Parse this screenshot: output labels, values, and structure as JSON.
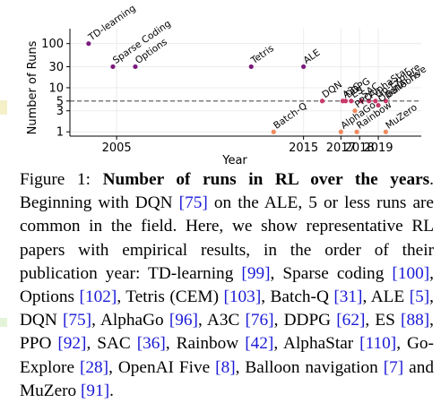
{
  "chart_data": {
    "type": "scatter",
    "title": "",
    "xlabel": "Year",
    "ylabel": "Number of Runs",
    "y_scale": "log",
    "xlim": [
      2002.5,
      2021.3
    ],
    "ylim": [
      0.8,
      150
    ],
    "x_ticks": [
      2005,
      2015,
      2017,
      2018,
      2019
    ],
    "x_tick_labels": [
      "2005",
      "2015",
      "2017",
      "2018",
      "2019"
    ],
    "y_ticks": [
      1,
      3,
      5,
      10,
      30,
      100
    ],
    "y_tick_labels": [
      "1",
      "3",
      "5",
      "10",
      "30",
      "100"
    ],
    "reference_line": {
      "y": 5,
      "style": "dashed"
    },
    "colors": {
      "high": "#7a1a7c",
      "mid": "#c8396a",
      "low": "#f08a5d",
      "line": "#555555"
    },
    "points": [
      {
        "label": "TD-learning",
        "x": 2003.5,
        "y": 100,
        "color": "#7a1a7c"
      },
      {
        "label": "Sparse Coding",
        "x": 2004.8,
        "y": 30,
        "color": "#7a1a7c"
      },
      {
        "label": "Options",
        "x": 2006.0,
        "y": 30,
        "color": "#7a1a7c"
      },
      {
        "label": "Tetris",
        "x": 2012.2,
        "y": 30,
        "color": "#7a1a7c"
      },
      {
        "label": "ALE",
        "x": 2015.0,
        "y": 30,
        "color": "#7a1a7c"
      },
      {
        "label": "Batch-Q",
        "x": 2013.4,
        "y": 1,
        "color": "#f08a5d"
      },
      {
        "label": "DQN",
        "x": 2016.0,
        "y": 5,
        "color": "#c8396a"
      },
      {
        "label": "AlphaGo",
        "x": 2017.0,
        "y": 1,
        "color": "#f08a5d"
      },
      {
        "label": "A3C",
        "x": 2017.1,
        "y": 5,
        "color": "#c8396a"
      },
      {
        "label": "DDPG",
        "x": 2017.25,
        "y": 5,
        "color": "#c8396a"
      },
      {
        "label": "ES",
        "x": 2017.55,
        "y": 5,
        "color": "#c8396a"
      },
      {
        "label": "PPO",
        "x": 2017.75,
        "y": 3,
        "color": "#f08a5d"
      },
      {
        "label": "Rainbow",
        "x": 2017.85,
        "y": 1,
        "color": "#f08a5d"
      },
      {
        "label": "SAC",
        "x": 2018.1,
        "y": 5,
        "color": "#c8396a"
      },
      {
        "label": "AlphaStar",
        "x": 2018.5,
        "y": 5,
        "color": "#c8396a"
      },
      {
        "label": "Go-Explore",
        "x": 2018.85,
        "y": 5,
        "color": "#c8396a"
      },
      {
        "label": "OpenAI Five",
        "x": 2019.0,
        "y": 4,
        "color": "#c8396a"
      },
      {
        "label": "Balloons",
        "x": 2019.4,
        "y": 5,
        "color": "#c8396a"
      },
      {
        "label": "MuZero",
        "x": 2019.4,
        "y": 1,
        "color": "#f08a5d"
      }
    ]
  },
  "caption": {
    "figure_label": "Figure 1:",
    "bold_title": "Number of runs in RL over the years",
    "segments": [
      {
        "t": "text",
        "v": ". Beginning with DQN "
      },
      {
        "t": "cite",
        "v": "[75]"
      },
      {
        "t": "text",
        "v": " on the ALE, 5 or less runs are common in the field. Here, we show representative RL papers with empirical results, in the order of their publication year: TD-learning "
      },
      {
        "t": "cite",
        "v": "[99]"
      },
      {
        "t": "text",
        "v": ", Sparse coding "
      },
      {
        "t": "cite",
        "v": "[100]"
      },
      {
        "t": "text",
        "v": ", Options "
      },
      {
        "t": "cite",
        "v": "[102]"
      },
      {
        "t": "text",
        "v": ", Tetris (CEM) "
      },
      {
        "t": "cite",
        "v": "[103]"
      },
      {
        "t": "text",
        "v": ", Batch-Q "
      },
      {
        "t": "cite",
        "v": "[31]"
      },
      {
        "t": "text",
        "v": ", ALE "
      },
      {
        "t": "cite",
        "v": "[5]"
      },
      {
        "t": "text",
        "v": ", DQN "
      },
      {
        "t": "cite",
        "v": "[75]"
      },
      {
        "t": "text",
        "v": ", AlphaGo "
      },
      {
        "t": "cite",
        "v": "[96]"
      },
      {
        "t": "text",
        "v": ", A3C "
      },
      {
        "t": "cite",
        "v": "[76]"
      },
      {
        "t": "text",
        "v": ", DDPG "
      },
      {
        "t": "cite",
        "v": "[62]"
      },
      {
        "t": "text",
        "v": ", ES "
      },
      {
        "t": "cite",
        "v": "[88]"
      },
      {
        "t": "text",
        "v": ", PPO "
      },
      {
        "t": "cite",
        "v": "[92]"
      },
      {
        "t": "text",
        "v": ", SAC "
      },
      {
        "t": "cite",
        "v": "[36]"
      },
      {
        "t": "text",
        "v": ", Rainbow "
      },
      {
        "t": "cite",
        "v": "[42]"
      },
      {
        "t": "text",
        "v": ", AlphaStar "
      },
      {
        "t": "cite",
        "v": "[110]"
      },
      {
        "t": "text",
        "v": ", Go-Explore "
      },
      {
        "t": "cite",
        "v": "[28]"
      },
      {
        "t": "text",
        "v": ", OpenAI Five "
      },
      {
        "t": "cite",
        "v": "[8]"
      },
      {
        "t": "text",
        "v": ", Balloon navigation "
      },
      {
        "t": "cite",
        "v": "[7]"
      },
      {
        "t": "text",
        "v": " and MuZero "
      },
      {
        "t": "cite",
        "v": "[91]"
      },
      {
        "t": "text",
        "v": "."
      }
    ]
  }
}
